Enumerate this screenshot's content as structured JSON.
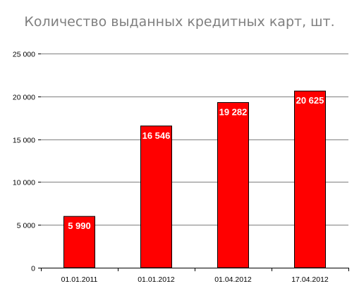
{
  "chart_data": {
    "type": "bar",
    "title": "Количество выданных кредитных карт, шт.",
    "xlabel": "",
    "ylabel": "",
    "categories": [
      "01.01.2011",
      "01.01.2012",
      "01.04.2012",
      "17.04.2012"
    ],
    "values": [
      5990,
      16546,
      19282,
      20625
    ],
    "data_labels": [
      "5 990",
      "16 546",
      "19 282",
      "20 625"
    ],
    "ylim": [
      0,
      25000
    ],
    "y_ticks": [
      0,
      5000,
      10000,
      15000,
      20000,
      25000
    ],
    "y_tick_labels": [
      "0",
      "5 000",
      "10 000",
      "15 000",
      "20 000",
      "25 000"
    ],
    "grid": true,
    "legend": "none",
    "colors": {
      "bar_fill": "#ff0000",
      "bar_stroke": "#000000",
      "grid": "#7f7f7f",
      "axis": "#000000",
      "title": "#7f7f7f",
      "label": "#ffffff"
    }
  }
}
